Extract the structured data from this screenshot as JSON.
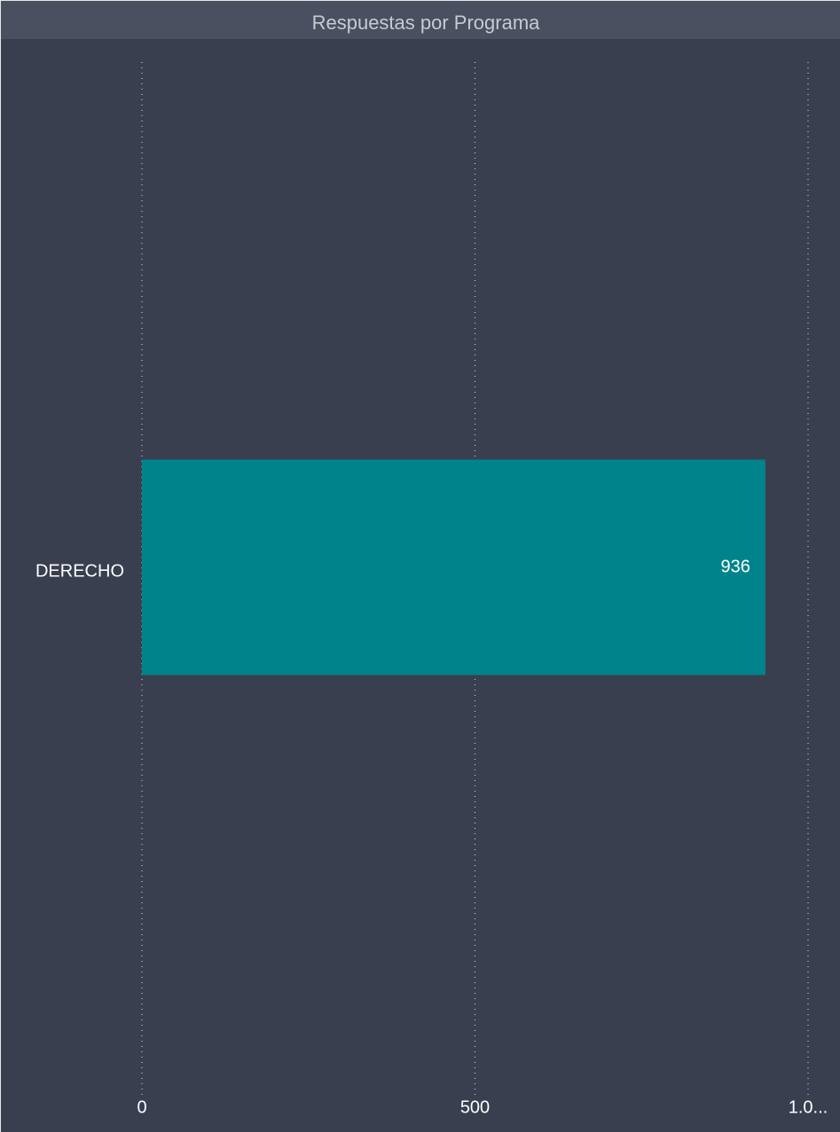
{
  "chart_data": {
    "type": "bar",
    "orientation": "horizontal",
    "title": "Respuestas por Programa",
    "categories": [
      "DERECHO"
    ],
    "values": [
      936
    ],
    "color": "#00838a",
    "xlim": [
      0,
      1000
    ],
    "xticks": [
      0,
      500,
      {
        "value": 1000,
        "label": "1.0..."
      }
    ],
    "grid": true
  }
}
